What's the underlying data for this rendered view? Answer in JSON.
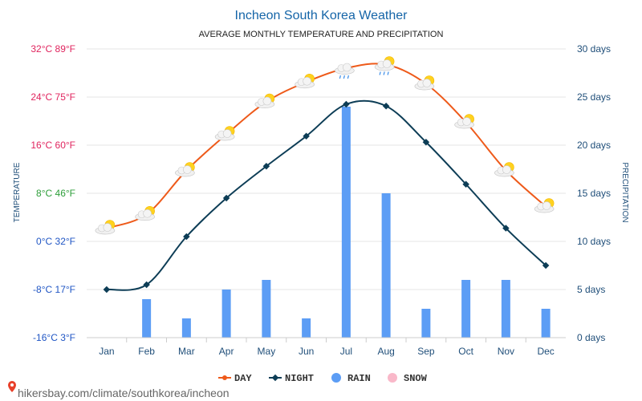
{
  "chart_data": {
    "type": "line",
    "title": "Incheon South Korea Weather",
    "subtitle": "AVERAGE MONTHLY TEMPERATURE AND PRECIPITATION",
    "ylabel_left": "TEMPERATURE",
    "ylabel_right": "PRECIPITATION",
    "categories": [
      "Jan",
      "Feb",
      "Mar",
      "Apr",
      "May",
      "Jun",
      "Jul",
      "Aug",
      "Sep",
      "Oct",
      "Nov",
      "Dec"
    ],
    "left_axis": {
      "ylim": [
        -16,
        32
      ],
      "ticks": [
        {
          "value": 32,
          "label": "32°C 89°F",
          "color": "#e0245e"
        },
        {
          "value": 24,
          "label": "24°C 75°F",
          "color": "#e0245e"
        },
        {
          "value": 16,
          "label": "16°C 60°F",
          "color": "#e0245e"
        },
        {
          "value": 8,
          "label": "8°C 46°F",
          "color": "#2e9e3a"
        },
        {
          "value": 0,
          "label": "0°C 32°F",
          "color": "#1f55c4"
        },
        {
          "value": -8,
          "label": "-8°C 17°F",
          "color": "#1f55c4"
        },
        {
          "value": -16,
          "label": "-16°C 3°F",
          "color": "#1f55c4"
        }
      ]
    },
    "right_axis": {
      "ylim": [
        0,
        30
      ],
      "ticks": [
        {
          "value": 30,
          "label": "30 days"
        },
        {
          "value": 25,
          "label": "25 days"
        },
        {
          "value": 20,
          "label": "20 days"
        },
        {
          "value": 15,
          "label": "15 days"
        },
        {
          "value": 10,
          "label": "10 days"
        },
        {
          "value": 5,
          "label": "5 days"
        },
        {
          "value": 0,
          "label": "0 days"
        }
      ]
    },
    "series": [
      {
        "name": "DAY",
        "kind": "line",
        "axis": "left",
        "color": "#ee5a1a",
        "values": [
          2.2,
          4.5,
          11.8,
          17.8,
          23.2,
          26.5,
          28.8,
          29.4,
          26.2,
          19.8,
          11.8,
          5.8
        ]
      },
      {
        "name": "NIGHT",
        "kind": "line",
        "axis": "left",
        "color": "#0d3d56",
        "values": [
          -8,
          -7.2,
          0.8,
          7.2,
          12.5,
          17.5,
          22.8,
          22.5,
          16.5,
          9.5,
          2.2,
          -4
        ]
      },
      {
        "name": "RAIN",
        "kind": "bar",
        "axis": "right",
        "color": "#5c9df5",
        "values": [
          0,
          4,
          2,
          5,
          6,
          2,
          24,
          15,
          3,
          6,
          6,
          3
        ]
      },
      {
        "name": "SNOW",
        "kind": "bar",
        "axis": "right",
        "color": "#f9b8c9",
        "values": [
          0,
          0,
          0,
          0,
          0,
          0,
          0,
          0,
          0,
          0,
          0,
          0
        ]
      }
    ],
    "weather_icons": [
      "sun-cloud",
      "sun-cloud",
      "sun-cloud",
      "sun-cloud",
      "sun-cloud",
      "sun-cloud",
      "rain-cloud",
      "sun-rain-cloud",
      "sun-cloud",
      "sun-cloud",
      "sun-cloud",
      "sun-cloud"
    ],
    "grid": true,
    "legend_position": "bottom"
  },
  "footer": {
    "text": "hikersbay.com/climate/southkorea/incheon",
    "icon": "location-pin-icon",
    "icon_color": "#e8402a"
  }
}
